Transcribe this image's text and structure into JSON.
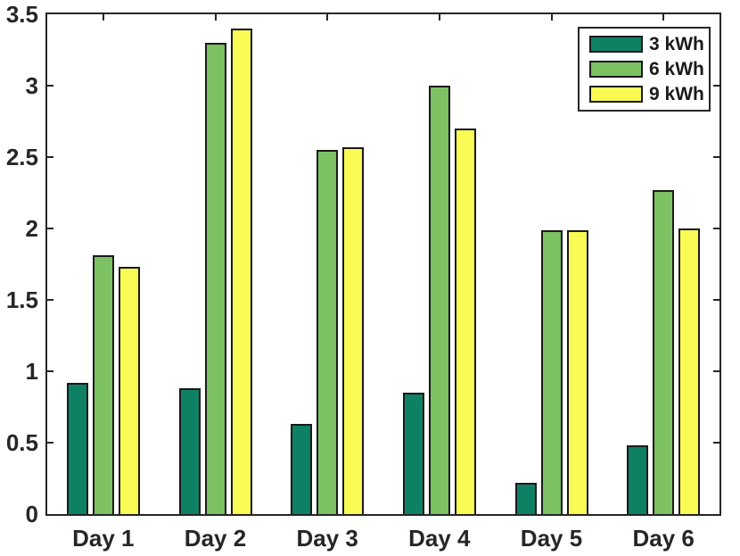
{
  "chart_data": {
    "type": "bar",
    "title": "",
    "xlabel": "",
    "ylabel": "",
    "categories": [
      "Day 1",
      "Day 2",
      "Day 3",
      "Day 4",
      "Day 5",
      "Day 6"
    ],
    "series": [
      {
        "name": "3 kWh",
        "color": "#0e8165",
        "values": [
          0.92,
          0.88,
          0.63,
          0.85,
          0.22,
          0.48
        ]
      },
      {
        "name": "6 kWh",
        "color": "#7cc162",
        "values": [
          1.81,
          3.3,
          2.55,
          3.0,
          1.99,
          2.27
        ]
      },
      {
        "name": "9 kWh",
        "color": "#f9fb54",
        "values": [
          1.73,
          3.4,
          2.57,
          2.7,
          1.99,
          2.0
        ]
      }
    ],
    "ylim": [
      0,
      3.5
    ],
    "yticks": [
      0,
      0.5,
      1,
      1.5,
      2,
      2.5,
      3,
      3.5
    ],
    "grid": false,
    "legend_position": "top-right",
    "bar_edge_color": "#1a1a1a",
    "axis_color": "#262626"
  }
}
